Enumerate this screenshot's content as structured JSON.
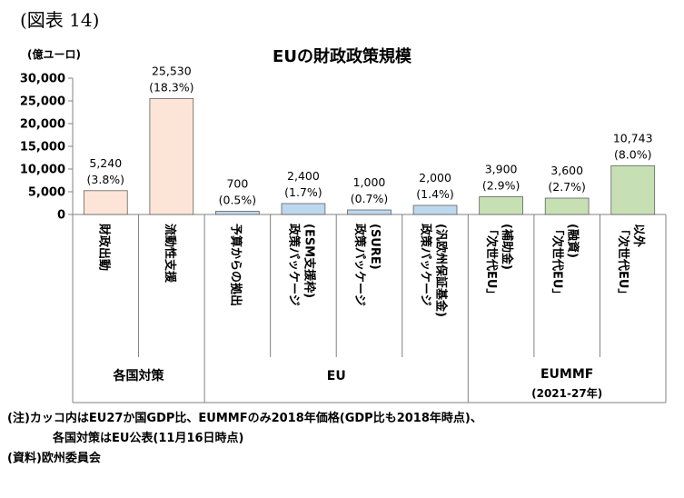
{
  "figure_label": "(図表 14)",
  "notes": {
    "line1": "(注)カッコ内はEU27か国GDP比、EUMMFのみ2018年価格(GDP比も2018年時点)、",
    "line2": "各国対策はEU公表(11月16日時点)",
    "source": "(資料)欧州委員会"
  },
  "chart_data": {
    "type": "bar",
    "title": "EUの財政政策規模",
    "ylabel": "(億ユーロ)",
    "ylim": [
      0,
      30000
    ],
    "yticks": [
      "0",
      "5,000",
      "10,000",
      "15,000",
      "20,000",
      "25,000",
      "30,000"
    ],
    "grid": false,
    "categories": [
      [
        "財政出動"
      ],
      [
        "流動性支援"
      ],
      [
        "予算からの拠出"
      ],
      [
        "政策パッケージ",
        "(ESM支援枠)"
      ],
      [
        "政策パッケージ",
        "(SURE)"
      ],
      [
        "政策パッケージ",
        "(汎欧州保証基金)"
      ],
      [
        "「次世代EU」",
        "(補助金)"
      ],
      [
        "「次世代EU」",
        "(融資)"
      ],
      [
        "「次世代EU」",
        "以外"
      ]
    ],
    "values": [
      5240,
      25530,
      700,
      2400,
      1000,
      2000,
      3900,
      3600,
      10743
    ],
    "value_labels": [
      "5,240",
      "25,530",
      "700",
      "2,400",
      "1,000",
      "2,000",
      "3,900",
      "3,600",
      "10,743"
    ],
    "gdp_share_labels": [
      "(3.8%)",
      "(18.3%)",
      "(0.5%)",
      "(1.7%)",
      "(0.7%)",
      "(1.4%)",
      "(2.9%)",
      "(2.7%)",
      "(8.0%)"
    ],
    "groups": [
      {
        "name": "各国対策",
        "subtitle": "",
        "count": 2,
        "color": "#fce4d6"
      },
      {
        "name": "EU",
        "subtitle": "",
        "count": 4,
        "color": "#bdd7ee"
      },
      {
        "name": "EUMMF",
        "subtitle": "(2021-27年)",
        "count": 3,
        "color": "#c6e0b4"
      }
    ]
  }
}
